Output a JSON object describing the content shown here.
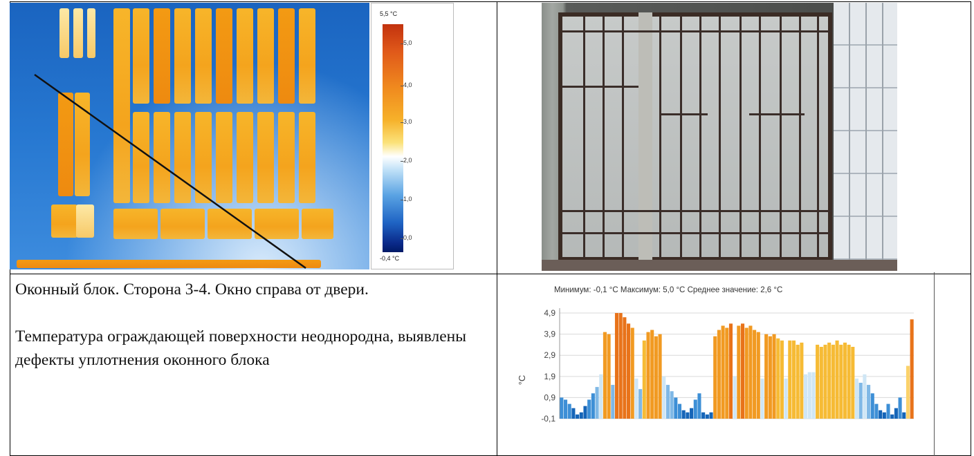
{
  "thermogram": {
    "scale_max_label": "5,5 °C",
    "scale_min_label": "-0,4 °C",
    "ticks": [
      "5,0",
      "4,0",
      "3,0",
      "2,0",
      "1,0",
      "0,0"
    ]
  },
  "caption": {
    "line1": "Оконный блок. Сторона 3-4. Окно справа от двери.",
    "line2": "Температура ограждающей поверхности неоднородна, выявлены дефекты уплотнения оконного блока"
  },
  "chart_summary": {
    "min_label": "Минимум:",
    "min_value": "-0,1 °C",
    "max_label": "Максимум:",
    "max_value": "5,0 °C",
    "avg_label": "Среднее значение:",
    "avg_value": "2,6 °C"
  },
  "chart_data": {
    "type": "bar",
    "ylabel": "°C",
    "ylim": [
      -0.1,
      5.0
    ],
    "ytick_labels": [
      "4,9",
      "3,9",
      "2,9",
      "1,9",
      "0,9",
      "-0,1"
    ],
    "ytick_values": [
      4.9,
      3.9,
      2.9,
      1.9,
      0.9,
      -0.1
    ],
    "grid": true,
    "values": [
      0.9,
      0.8,
      0.6,
      0.4,
      0.1,
      0.2,
      0.5,
      0.8,
      1.1,
      1.4,
      2.0,
      4.0,
      3.9,
      1.5,
      4.9,
      4.9,
      4.7,
      4.4,
      4.2,
      1.8,
      1.3,
      3.6,
      4.0,
      4.1,
      3.8,
      3.9,
      1.9,
      1.5,
      1.2,
      0.9,
      0.6,
      0.3,
      0.2,
      0.4,
      0.8,
      1.1,
      0.2,
      0.1,
      0.2,
      3.8,
      4.1,
      4.3,
      4.2,
      4.4,
      1.9,
      4.3,
      4.4,
      4.2,
      4.3,
      4.1,
      4.0,
      1.8,
      3.9,
      3.8,
      3.9,
      3.7,
      3.6,
      1.8,
      3.6,
      3.6,
      3.4,
      3.5,
      2.0,
      2.1,
      2.1,
      3.4,
      3.3,
      3.4,
      3.5,
      3.4,
      3.6,
      3.4,
      3.5,
      3.4,
      3.3,
      1.8,
      1.6,
      2.0,
      1.5,
      1.1,
      0.6,
      0.3,
      0.2,
      0.6,
      0.1,
      0.4,
      0.9,
      0.2,
      2.4,
      4.6
    ]
  }
}
